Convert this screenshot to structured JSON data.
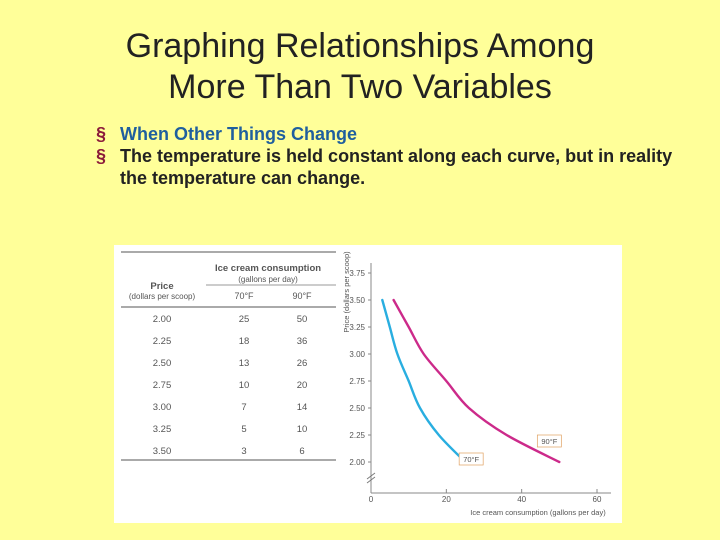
{
  "slide": {
    "title_line1": "Graphing Relationships Among",
    "title_line2": "More Than Two Variables",
    "bullets": [
      "When Other Things Change",
      "The temperature is held constant along each curve, but in reality the temperature can change."
    ],
    "bullet_marker": "§"
  },
  "table": {
    "group_header_line1": "Ice cream consumption",
    "group_header_line2": "(gallons per day)",
    "price_header_line1": "Price",
    "price_header_line2": "(dollars per scoop)",
    "columns": [
      "70°F",
      "90°F"
    ],
    "rows": [
      [
        "2.00",
        "25",
        "50"
      ],
      [
        "2.25",
        "18",
        "36"
      ],
      [
        "2.50",
        "13",
        "26"
      ],
      [
        "2.75",
        "10",
        "20"
      ],
      [
        "3.00",
        "7",
        "14"
      ],
      [
        "3.25",
        "5",
        "10"
      ],
      [
        "3.50",
        "3",
        "6"
      ]
    ]
  },
  "chart_data": {
    "type": "line",
    "xlabel": "Ice cream consumption (gallons per day)",
    "ylabel": "Price (dollars per scoop)",
    "xlim": [
      0,
      60
    ],
    "ylim": [
      2.0,
      3.75
    ],
    "x_ticks": [
      "0",
      "20",
      "40",
      "60"
    ],
    "y_ticks": [
      "2.00",
      "2.25",
      "2.50",
      "2.75",
      "3.00",
      "3.25",
      "3.50",
      "3.75"
    ],
    "axis_break": true,
    "series": [
      {
        "name": "70°F",
        "color": "#29aee0",
        "points": [
          [
            3,
            3.5
          ],
          [
            5,
            3.25
          ],
          [
            7,
            3.0
          ],
          [
            10,
            2.75
          ],
          [
            13,
            2.5
          ],
          [
            18,
            2.25
          ],
          [
            25,
            2.0
          ]
        ]
      },
      {
        "name": "90°F",
        "color": "#cc2a8a",
        "points": [
          [
            6,
            3.5
          ],
          [
            10,
            3.25
          ],
          [
            14,
            3.0
          ],
          [
            20,
            2.75
          ],
          [
            26,
            2.5
          ],
          [
            36,
            2.25
          ],
          [
            50,
            2.0
          ]
        ]
      }
    ]
  },
  "colors": {
    "background": "#ffff99",
    "bullet_marker": "#8b1a3a",
    "bullet_accent": "#1f5f9e"
  }
}
